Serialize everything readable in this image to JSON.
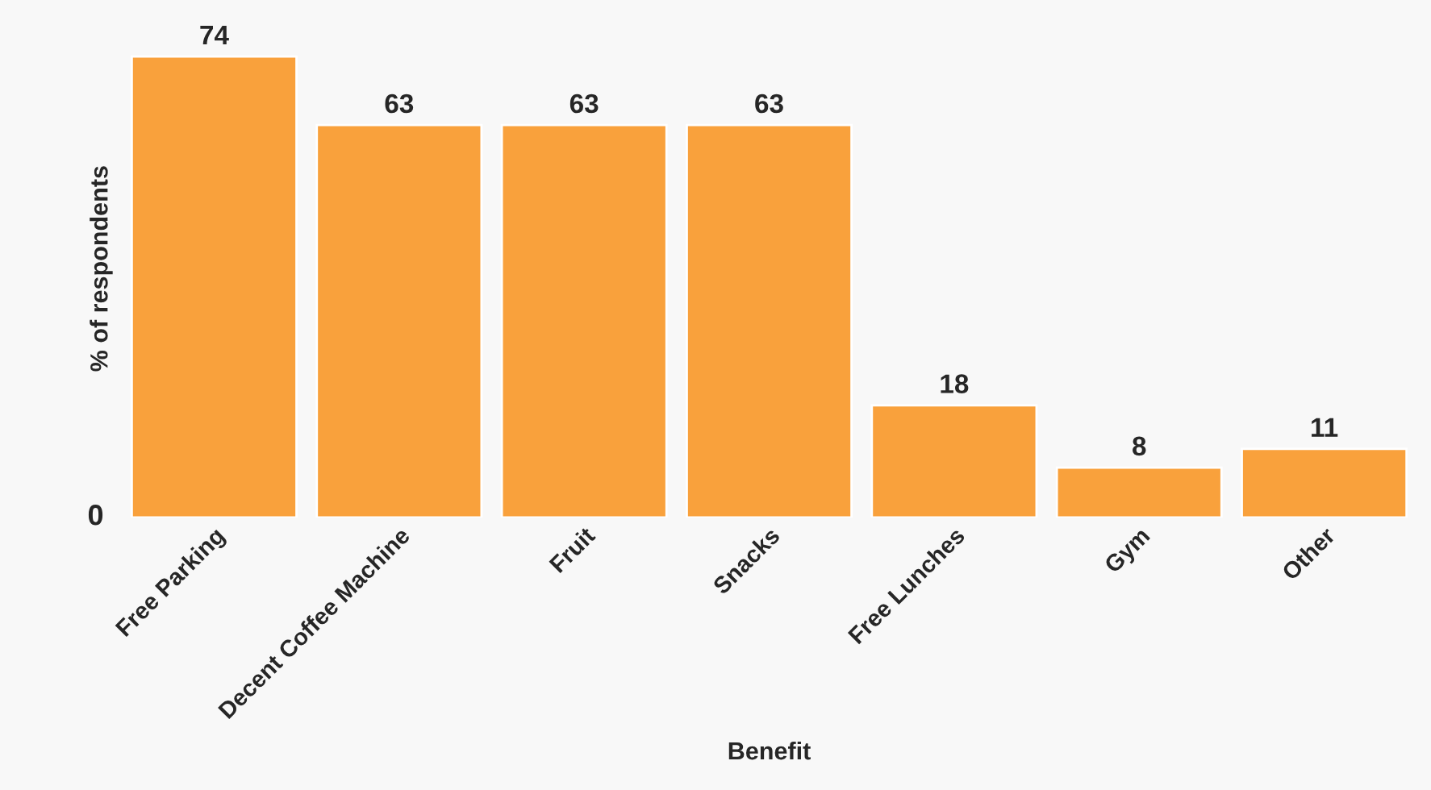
{
  "chart_data": {
    "type": "bar",
    "xlabel": "Benefit",
    "ylabel": "% of respondents",
    "categories": [
      "Free Parking",
      "Decent Coffee Machine",
      "Fruit",
      "Snacks",
      "Free Lunches",
      "Gym",
      "Other"
    ],
    "values": [
      74,
      63,
      63,
      63,
      18,
      8,
      11
    ],
    "color": "#f9a13c",
    "annotations": [
      "0"
    ],
    "data_labels": true,
    "grid": false,
    "legend": false
  }
}
